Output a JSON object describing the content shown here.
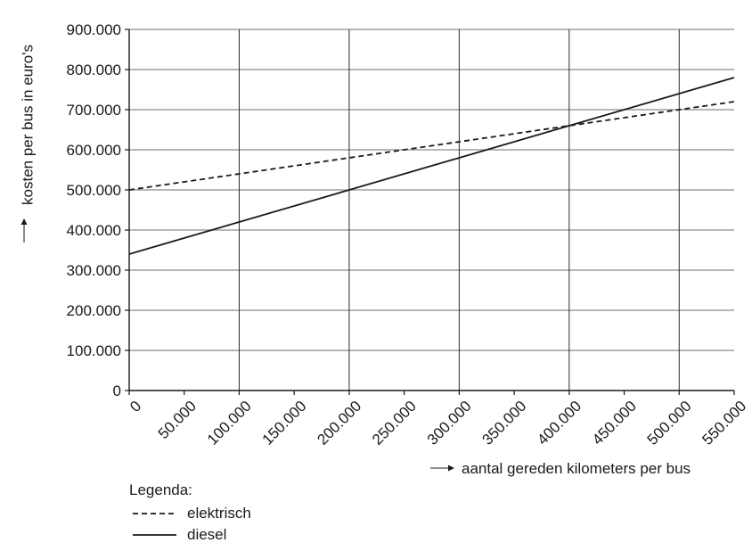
{
  "chart_data": {
    "type": "line",
    "ylabel": "kosten per bus in euro's",
    "xlabel": "aantal gereden kilometers per bus",
    "x_ticks": [
      0,
      50000,
      100000,
      150000,
      200000,
      250000,
      300000,
      350000,
      400000,
      450000,
      500000,
      550000
    ],
    "x_tick_labels": [
      "0",
      "50.000",
      "100.000",
      "150.000",
      "200.000",
      "250.000",
      "300.000",
      "350.000",
      "400.000",
      "450.000",
      "500.000",
      "550.000"
    ],
    "y_ticks": [
      0,
      100000,
      200000,
      300000,
      400000,
      500000,
      600000,
      700000,
      800000,
      900000
    ],
    "y_tick_labels": [
      "0",
      "100.000",
      "200.000",
      "300.000",
      "400.000",
      "500.000",
      "600.000",
      "700.000",
      "800.000",
      "900.000"
    ],
    "xlim": [
      0,
      550000
    ],
    "ylim": [
      0,
      900000
    ],
    "vertical_grid": [
      100000,
      200000,
      300000,
      400000,
      500000
    ],
    "horizontal_grid": true,
    "series": [
      {
        "name": "elektrisch",
        "style": "dashed",
        "x": [
          0,
          550000
        ],
        "y": [
          500000,
          720000
        ]
      },
      {
        "name": "diesel",
        "style": "solid",
        "x": [
          0,
          550000
        ],
        "y": [
          340000,
          780000
        ]
      }
    ],
    "legend": {
      "title": "Legenda:",
      "placement": "bottom-left",
      "entries": [
        {
          "label": "elektrisch",
          "style": "dashed"
        },
        {
          "label": "diesel",
          "style": "solid"
        }
      ]
    }
  }
}
